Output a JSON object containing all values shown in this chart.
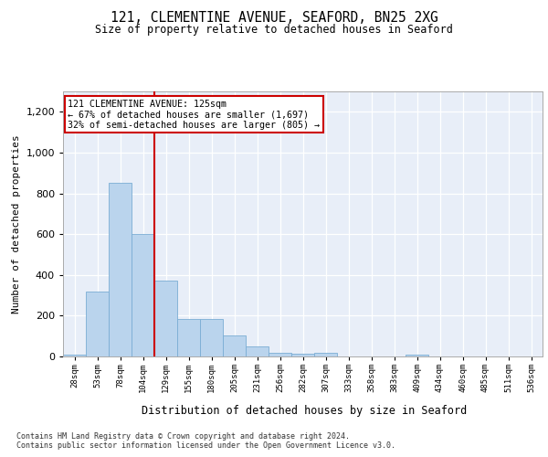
{
  "title_line1": "121, CLEMENTINE AVENUE, SEAFORD, BN25 2XG",
  "title_line2": "Size of property relative to detached houses in Seaford",
  "xlabel": "Distribution of detached houses by size in Seaford",
  "ylabel": "Number of detached properties",
  "bin_labels": [
    "28sqm",
    "53sqm",
    "78sqm",
    "104sqm",
    "129sqm",
    "155sqm",
    "180sqm",
    "205sqm",
    "231sqm",
    "256sqm",
    "282sqm",
    "307sqm",
    "333sqm",
    "358sqm",
    "383sqm",
    "409sqm",
    "434sqm",
    "460sqm",
    "485sqm",
    "511sqm",
    "536sqm"
  ],
  "bar_values": [
    10,
    320,
    850,
    600,
    370,
    185,
    185,
    105,
    50,
    20,
    15,
    20,
    0,
    0,
    0,
    10,
    0,
    0,
    0,
    0,
    0
  ],
  "bar_color": "#bad4ed",
  "bar_edge_color": "#7aadd4",
  "vline_color": "#cc0000",
  "vline_bin_index": 4,
  "annotation_text": "121 CLEMENTINE AVENUE: 125sqm\n← 67% of detached houses are smaller (1,697)\n32% of semi-detached houses are larger (805) →",
  "annotation_box_facecolor": "#ffffff",
  "annotation_box_edgecolor": "#cc0000",
  "ylim": [
    0,
    1300
  ],
  "yticks": [
    0,
    200,
    400,
    600,
    800,
    1000,
    1200
  ],
  "footer_text": "Contains HM Land Registry data © Crown copyright and database right 2024.\nContains public sector information licensed under the Open Government Licence v3.0.",
  "fig_facecolor": "#ffffff",
  "plot_facecolor": "#e8eef8"
}
